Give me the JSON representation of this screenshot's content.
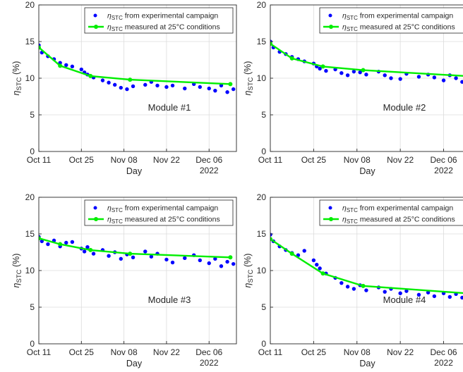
{
  "chart_data": [
    {
      "type": "scatter",
      "panel_label": "Module #1",
      "xlabel": "Day",
      "ylabel_symbol": "η",
      "ylabel_subscript": "STC",
      "ylabel_unit": "(%)",
      "x_ticks": [
        "Oct 11",
        "Oct 25",
        "Nov 08",
        "Nov 22",
        "Dec 06"
      ],
      "x_secondary_label": "2022",
      "x_range": [
        "2022-10-11",
        "2022-12-15"
      ],
      "ylim": [
        0,
        20
      ],
      "y_ticks": [
        0,
        5,
        10,
        15,
        20
      ],
      "grid": true,
      "legend_position": "top-right",
      "series": [
        {
          "name_symbol": "η",
          "name_subscript": "STC",
          "name_text": " from experimental campaign",
          "kind": "scatter",
          "color": "#0000ff",
          "points": [
            [
              "2022-10-11",
              14.5
            ],
            [
              "2022-10-12",
              13.5
            ],
            [
              "2022-10-14",
              13.0
            ],
            [
              "2022-10-16",
              12.6
            ],
            [
              "2022-10-18",
              12.1
            ],
            [
              "2022-10-20",
              11.8
            ],
            [
              "2022-10-22",
              11.6
            ],
            [
              "2022-10-25",
              11.2
            ],
            [
              "2022-10-26",
              10.8
            ],
            [
              "2022-10-27",
              10.5
            ],
            [
              "2022-10-29",
              10.1
            ],
            [
              "2022-11-01",
              9.7
            ],
            [
              "2022-11-03",
              9.4
            ],
            [
              "2022-11-05",
              9.1
            ],
            [
              "2022-11-07",
              8.7
            ],
            [
              "2022-11-09",
              8.5
            ],
            [
              "2022-11-11",
              8.9
            ],
            [
              "2022-11-15",
              9.1
            ],
            [
              "2022-11-17",
              9.5
            ],
            [
              "2022-11-19",
              9.0
            ],
            [
              "2022-11-22",
              8.8
            ],
            [
              "2022-11-24",
              9.0
            ],
            [
              "2022-11-28",
              8.6
            ],
            [
              "2022-12-01",
              9.2
            ],
            [
              "2022-12-03",
              8.8
            ],
            [
              "2022-12-06",
              8.6
            ],
            [
              "2022-12-08",
              8.3
            ],
            [
              "2022-12-10",
              9.0
            ],
            [
              "2022-12-12",
              8.1
            ],
            [
              "2022-12-14",
              8.5
            ]
          ]
        },
        {
          "name_symbol": "η",
          "name_subscript": "STC",
          "name_text": " measured at 25°C conditions",
          "kind": "line",
          "color": "#00ee00",
          "points": [
            [
              "2022-10-11",
              14.2
            ],
            [
              "2022-10-18",
              11.7
            ],
            [
              "2022-10-28",
              10.3
            ],
            [
              "2022-11-10",
              9.8
            ],
            [
              "2022-12-13",
              9.2
            ]
          ]
        }
      ]
    },
    {
      "type": "scatter",
      "panel_label": "Module #2",
      "xlabel": "Day",
      "ylabel_symbol": "η",
      "ylabel_subscript": "STC",
      "ylabel_unit": "(%)",
      "x_ticks": [
        "Oct 11",
        "Oct 25",
        "Nov 08",
        "Nov 22",
        "Dec 06"
      ],
      "x_secondary_label": "2022",
      "x_range": [
        "2022-10-11",
        "2022-12-15"
      ],
      "ylim": [
        0,
        20
      ],
      "y_ticks": [
        0,
        5,
        10,
        15,
        20
      ],
      "grid": true,
      "legend_position": "top-right",
      "series": [
        {
          "name_symbol": "η",
          "name_subscript": "STC",
          "name_text": " from experimental campaign",
          "kind": "scatter",
          "color": "#0000ff",
          "points": [
            [
              "2022-10-11",
              15.0
            ],
            [
              "2022-10-12",
              14.2
            ],
            [
              "2022-10-14",
              13.6
            ],
            [
              "2022-10-16",
              13.3
            ],
            [
              "2022-10-18",
              12.9
            ],
            [
              "2022-10-20",
              12.6
            ],
            [
              "2022-10-22",
              12.3
            ],
            [
              "2022-10-25",
              12.0
            ],
            [
              "2022-10-26",
              11.6
            ],
            [
              "2022-10-27",
              11.3
            ],
            [
              "2022-10-29",
              11.0
            ],
            [
              "2022-11-01",
              11.2
            ],
            [
              "2022-11-03",
              10.7
            ],
            [
              "2022-11-05",
              10.4
            ],
            [
              "2022-11-07",
              10.9
            ],
            [
              "2022-11-09",
              10.8
            ],
            [
              "2022-11-11",
              10.5
            ],
            [
              "2022-11-15",
              10.9
            ],
            [
              "2022-11-17",
              10.4
            ],
            [
              "2022-11-19",
              10.0
            ],
            [
              "2022-11-22",
              9.9
            ],
            [
              "2022-11-24",
              10.6
            ],
            [
              "2022-11-28",
              10.2
            ],
            [
              "2022-12-01",
              10.5
            ],
            [
              "2022-12-03",
              10.1
            ],
            [
              "2022-12-06",
              9.7
            ],
            [
              "2022-12-08",
              10.4
            ],
            [
              "2022-12-10",
              10.0
            ],
            [
              "2022-12-12",
              9.5
            ],
            [
              "2022-12-14",
              9.3
            ]
          ]
        },
        {
          "name_symbol": "η",
          "name_subscript": "STC",
          "name_text": " measured at 25°C conditions",
          "kind": "line",
          "color": "#00ee00",
          "points": [
            [
              "2022-10-11",
              14.7
            ],
            [
              "2022-10-18",
              12.7
            ],
            [
              "2022-10-28",
              11.6
            ],
            [
              "2022-11-10",
              11.1
            ],
            [
              "2022-12-13",
              10.3
            ]
          ]
        }
      ]
    },
    {
      "type": "scatter",
      "panel_label": "Module #3",
      "xlabel": "Day",
      "ylabel_symbol": "η",
      "ylabel_subscript": "STC",
      "ylabel_unit": "(%)",
      "x_ticks": [
        "Oct 11",
        "Oct 25",
        "Nov 08",
        "Nov 22",
        "Dec 06"
      ],
      "x_secondary_label": "2022",
      "x_range": [
        "2022-10-11",
        "2022-12-15"
      ],
      "ylim": [
        0,
        20
      ],
      "y_ticks": [
        0,
        5,
        10,
        15,
        20
      ],
      "grid": true,
      "legend_position": "top-right",
      "series": [
        {
          "name_symbol": "η",
          "name_subscript": "STC",
          "name_text": " from experimental campaign",
          "kind": "scatter",
          "color": "#0000ff",
          "points": [
            [
              "2022-10-11",
              14.6
            ],
            [
              "2022-10-12",
              14.0
            ],
            [
              "2022-10-14",
              13.6
            ],
            [
              "2022-10-16",
              14.1
            ],
            [
              "2022-10-18",
              13.3
            ],
            [
              "2022-10-20",
              13.8
            ],
            [
              "2022-10-22",
              13.9
            ],
            [
              "2022-10-25",
              13.0
            ],
            [
              "2022-10-26",
              12.6
            ],
            [
              "2022-10-27",
              13.2
            ],
            [
              "2022-10-29",
              12.3
            ],
            [
              "2022-11-01",
              12.8
            ],
            [
              "2022-11-03",
              12.0
            ],
            [
              "2022-11-05",
              12.5
            ],
            [
              "2022-11-07",
              11.6
            ],
            [
              "2022-11-09",
              12.2
            ],
            [
              "2022-11-11",
              11.8
            ],
            [
              "2022-11-15",
              12.6
            ],
            [
              "2022-11-17",
              11.9
            ],
            [
              "2022-11-19",
              12.3
            ],
            [
              "2022-11-22",
              11.5
            ],
            [
              "2022-11-24",
              11.1
            ],
            [
              "2022-11-28",
              11.7
            ],
            [
              "2022-12-01",
              12.1
            ],
            [
              "2022-12-03",
              11.4
            ],
            [
              "2022-12-06",
              11.0
            ],
            [
              "2022-12-08",
              11.6
            ],
            [
              "2022-12-10",
              10.6
            ],
            [
              "2022-12-12",
              11.2
            ],
            [
              "2022-12-14",
              10.9
            ]
          ]
        },
        {
          "name_symbol": "η",
          "name_subscript": "STC",
          "name_text": " measured at 25°C conditions",
          "kind": "line",
          "color": "#00ee00",
          "points": [
            [
              "2022-10-11",
              14.4
            ],
            [
              "2022-10-18",
              13.6
            ],
            [
              "2022-10-28",
              12.8
            ],
            [
              "2022-11-10",
              12.3
            ],
            [
              "2022-12-13",
              11.8
            ]
          ]
        }
      ]
    },
    {
      "type": "scatter",
      "panel_label": "Module #4",
      "xlabel": "Day",
      "ylabel_symbol": "η",
      "ylabel_subscript": "STC",
      "ylabel_unit": "(%)",
      "x_ticks": [
        "Oct 11",
        "Oct 25",
        "Nov 08",
        "Nov 22",
        "Dec 06"
      ],
      "x_secondary_label": "2022",
      "x_range": [
        "2022-10-11",
        "2022-12-15"
      ],
      "ylim": [
        0,
        20
      ],
      "y_ticks": [
        0,
        5,
        10,
        15,
        20
      ],
      "grid": true,
      "legend_position": "top-right",
      "series": [
        {
          "name_symbol": "η",
          "name_subscript": "STC",
          "name_text": " from experimental campaign",
          "kind": "scatter",
          "color": "#0000ff",
          "points": [
            [
              "2022-10-11",
              14.9
            ],
            [
              "2022-10-12",
              14.0
            ],
            [
              "2022-10-14",
              13.3
            ],
            [
              "2022-10-16",
              12.8
            ],
            [
              "2022-10-18",
              12.4
            ],
            [
              "2022-10-20",
              12.1
            ],
            [
              "2022-10-22",
              12.7
            ],
            [
              "2022-10-25",
              11.4
            ],
            [
              "2022-10-26",
              10.8
            ],
            [
              "2022-10-27",
              10.3
            ],
            [
              "2022-10-29",
              9.6
            ],
            [
              "2022-11-01",
              9.0
            ],
            [
              "2022-11-03",
              8.3
            ],
            [
              "2022-11-05",
              7.8
            ],
            [
              "2022-11-07",
              7.5
            ],
            [
              "2022-11-09",
              8.0
            ],
            [
              "2022-11-11",
              7.3
            ],
            [
              "2022-11-15",
              7.7
            ],
            [
              "2022-11-17",
              7.1
            ],
            [
              "2022-11-19",
              7.5
            ],
            [
              "2022-11-22",
              6.9
            ],
            [
              "2022-11-24",
              7.2
            ],
            [
              "2022-11-28",
              6.7
            ],
            [
              "2022-12-01",
              7.0
            ],
            [
              "2022-12-03",
              6.5
            ],
            [
              "2022-12-06",
              6.9
            ],
            [
              "2022-12-08",
              6.4
            ],
            [
              "2022-12-10",
              6.8
            ],
            [
              "2022-12-12",
              6.3
            ],
            [
              "2022-12-14",
              6.6
            ]
          ]
        },
        {
          "name_symbol": "η",
          "name_subscript": "STC",
          "name_text": " measured at 25°C conditions",
          "kind": "line",
          "color": "#00ee00",
          "points": [
            [
              "2022-10-11",
              14.3
            ],
            [
              "2022-10-18",
              12.3
            ],
            [
              "2022-10-28",
              9.6
            ],
            [
              "2022-11-10",
              7.9
            ],
            [
              "2022-12-13",
              6.9
            ]
          ]
        }
      ]
    }
  ]
}
